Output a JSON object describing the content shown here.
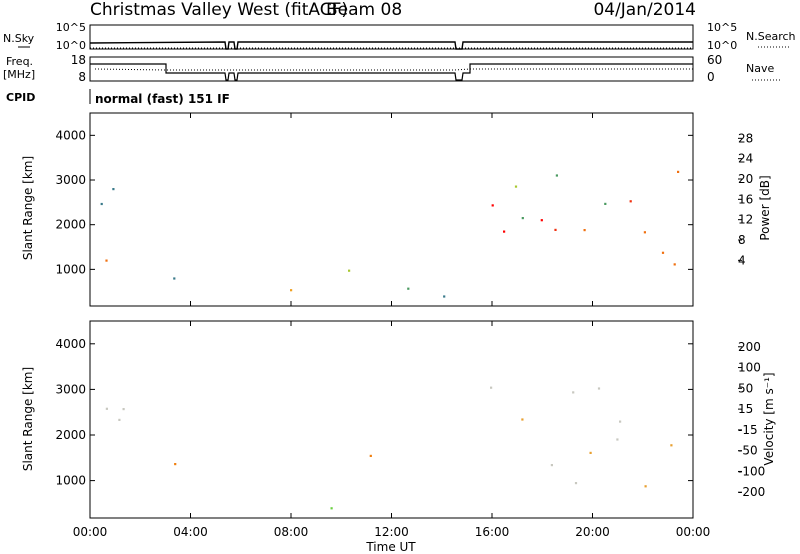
{
  "header": {
    "station": "Christmas Valley West (fitACF)",
    "beam": "Beam 08",
    "date": "04/Jan/2014"
  },
  "strip_labels": {
    "nsky": "N.Sky",
    "nsearch": "N.Search",
    "freq": "Freq.",
    "freq_unit": "[MHz]",
    "nave": "Nave",
    "cpid": "CPID",
    "cpid_value": "normal (fast) 151 IF"
  },
  "strip_ticks": {
    "nsky": [
      "10^5",
      "10^0"
    ],
    "freq": [
      "18",
      "8"
    ],
    "nave": [
      "60",
      "0"
    ]
  },
  "colors": {
    "power_scale": [
      "#1a1aff",
      "#2e45b0",
      "#3a7a8a",
      "#4a9a60",
      "#a8c830",
      "#f0a020",
      "#f07010",
      "#f03010",
      "#ff0000"
    ],
    "velocity_scale": [
      "#2a3aa0",
      "#3a6a6a",
      "#3f9a3f",
      "#6ad040",
      "#c8c8c0",
      "#e8a030",
      "#f08010",
      "#f04010",
      "#ff0000"
    ]
  },
  "chart_data": [
    {
      "type": "heatmap",
      "name": "power",
      "ylabel": "Slant Range [km]",
      "xlabel": "",
      "ylim": [
        180,
        4500
      ],
      "yticks": [
        "1000",
        "2000",
        "3000",
        "4000"
      ],
      "xlim_hours": [
        0,
        24
      ],
      "xticks": [
        "00:00",
        "04:00",
        "08:00",
        "12:00",
        "16:00",
        "20:00",
        "00:00"
      ],
      "colorbar": {
        "label": "Power [dB]",
        "ticks": [
          "28",
          "24",
          "20",
          "16",
          "12",
          "8",
          "4"
        ]
      },
      "regions": [
        {
          "hours": [
            0.2,
            1.2
          ],
          "range_km": [
            1000,
            2000
          ],
          "level": "strong"
        },
        {
          "hours": [
            0.2,
            3.0
          ],
          "range_km": [
            1800,
            3200
          ],
          "level": "moderate"
        },
        {
          "hours": [
            2.5,
            5.0
          ],
          "range_km": [
            500,
            1400
          ],
          "level": "weak"
        },
        {
          "hours": [
            6.0,
            15.0
          ],
          "range_km": [
            200,
            700
          ],
          "level": "moderate"
        },
        {
          "hours": [
            10.0,
            12.2
          ],
          "range_km": [
            950,
            1750
          ],
          "level": "moderate"
        },
        {
          "hours": [
            15.8,
            23.7
          ],
          "range_km": [
            900,
            2700
          ],
          "level": "strong"
        },
        {
          "hours": [
            16.0,
            23.7
          ],
          "range_km": [
            1800,
            3300
          ],
          "level": "moderate"
        }
      ]
    },
    {
      "type": "heatmap",
      "name": "velocity",
      "ylabel": "Slant Range [km]",
      "xlabel": "Time UT",
      "ylim": [
        180,
        4500
      ],
      "yticks": [
        "1000",
        "2000",
        "3000",
        "4000"
      ],
      "xlim_hours": [
        0,
        24
      ],
      "xticks": [
        "00:00",
        "04:00",
        "08:00",
        "12:00",
        "16:00",
        "20:00",
        "00:00"
      ],
      "colorbar": {
        "label": "Velocity [m s⁻¹]",
        "ticks": [
          "200",
          "100",
          "50",
          "15",
          "-15",
          "-50",
          "-100",
          "-200"
        ]
      },
      "regions": [
        {
          "hours": [
            0.2,
            3.0
          ],
          "range_km": [
            1000,
            3200
          ],
          "level": "ground"
        },
        {
          "hours": [
            2.5,
            5.0
          ],
          "range_km": [
            900,
            1500
          ],
          "level": "negative"
        },
        {
          "hours": [
            6.0,
            12.0
          ],
          "range_km": [
            200,
            500
          ],
          "level": "positive"
        },
        {
          "hours": [
            10.0,
            12.2
          ],
          "range_km": [
            950,
            1750
          ],
          "level": "negative"
        },
        {
          "hours": [
            15.8,
            23.7
          ],
          "range_km": [
            700,
            3200
          ],
          "level": "ground"
        }
      ]
    }
  ]
}
